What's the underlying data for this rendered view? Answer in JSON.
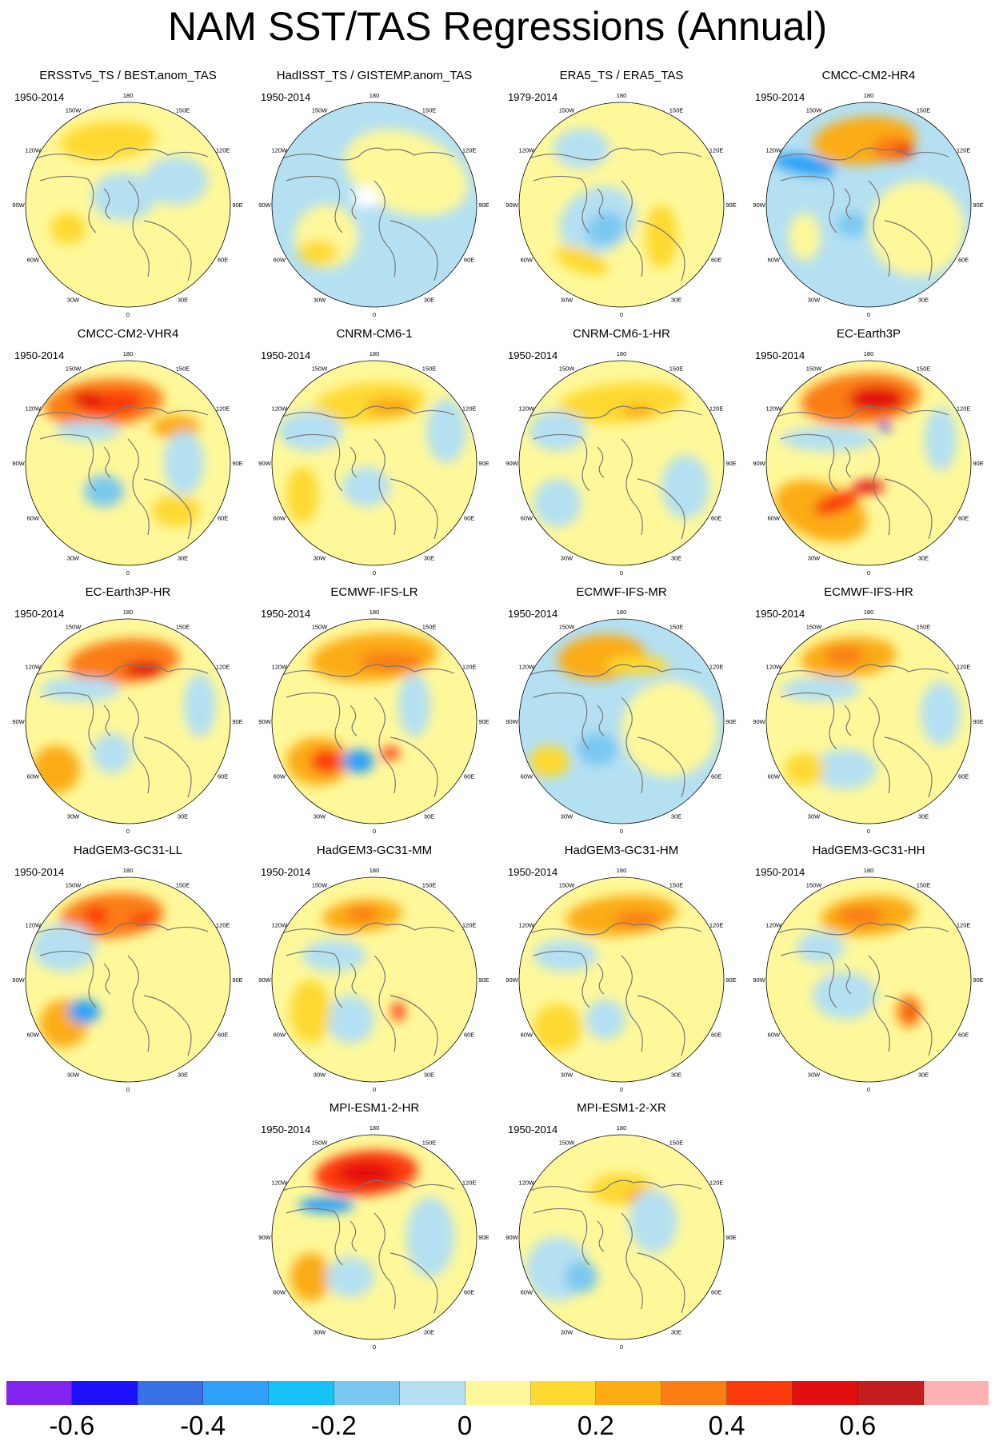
{
  "title": "NAM SST/TAS Regressions (Annual)",
  "panels": [
    {
      "title": "ERSSTv5_TS / BEST.anom_TAS",
      "period": "1950-2014"
    },
    {
      "title": "HadISST_TS / GISTEMP.anom_TAS",
      "period": "1950-2014"
    },
    {
      "title": "ERA5_TS / ERA5_TAS",
      "period": "1979-2014"
    },
    {
      "title": "CMCC-CM2-HR4",
      "period": "1950-2014"
    },
    {
      "title": "CMCC-CM2-VHR4",
      "period": "1950-2014"
    },
    {
      "title": "CNRM-CM6-1",
      "period": "1950-2014"
    },
    {
      "title": "CNRM-CM6-1-HR",
      "period": "1950-2014"
    },
    {
      "title": "EC-Earth3P",
      "period": "1950-2014"
    },
    {
      "title": "EC-Earth3P-HR",
      "period": "1950-2014"
    },
    {
      "title": "ECMWF-IFS-LR",
      "period": "1950-2014"
    },
    {
      "title": "ECMWF-IFS-MR",
      "period": "1950-2014"
    },
    {
      "title": "ECMWF-IFS-HR",
      "period": "1950-2014"
    },
    {
      "title": "HadGEM3-GC31-LL",
      "period": "1950-2014"
    },
    {
      "title": "HadGEM3-GC31-MM",
      "period": "1950-2014"
    },
    {
      "title": "HadGEM3-GC31-HM",
      "period": "1950-2014"
    },
    {
      "title": "HadGEM3-GC31-HH",
      "period": "1950-2014"
    },
    {
      "title": "MPI-ESM1-2-HR",
      "period": "1950-2014"
    },
    {
      "title": "MPI-ESM1-2-XR",
      "period": "1950-2014"
    }
  ],
  "longitude_labels": [
    "180",
    "150E",
    "120E",
    "90E",
    "60E",
    "30E",
    "0",
    "30W",
    "60W",
    "90W",
    "120W",
    "150W"
  ],
  "colorbar": {
    "colors": [
      "#8124f0",
      "#1e12fa",
      "#3a70e6",
      "#2ea0f8",
      "#17c2f8",
      "#7ac8f0",
      "#b4e0f2",
      "#fef89a",
      "#fdd931",
      "#fbac13",
      "#fb7d13",
      "#fb3a0e",
      "#e20f0f",
      "#c51d1d",
      "#feb1b2"
    ],
    "tick_labels": [
      "-0.6",
      "-0.4",
      "-0.2",
      "0",
      "0.2",
      "0.4",
      "0.6"
    ],
    "tick_values": [
      -0.6,
      -0.4,
      -0.2,
      0,
      0.2,
      0.4,
      0.6
    ]
  },
  "map_fields": [
    {
      "bg": "#fef89a",
      "blobs": [
        [
          "#fdd931",
          -25,
          -80,
          60,
          24,
          -5
        ],
        [
          "#b4e0f2",
          -5,
          -10,
          40,
          30,
          0
        ],
        [
          "#fdd931",
          -75,
          30,
          22,
          20,
          0
        ],
        [
          "#b4e0f2",
          60,
          -30,
          40,
          30,
          0
        ]
      ]
    },
    {
      "bg": "#b4e0f2",
      "blobs": [
        [
          "#fef89a",
          40,
          -40,
          80,
          50,
          20
        ],
        [
          "#fef89a",
          -60,
          40,
          40,
          40,
          0
        ],
        [
          "#fdd931",
          -70,
          60,
          25,
          15,
          0
        ],
        [
          "#ffffff",
          -10,
          -10,
          18,
          14,
          0
        ]
      ]
    },
    {
      "bg": "#fef89a",
      "blobs": [
        [
          "#b4e0f2",
          -30,
          20,
          50,
          40,
          -30
        ],
        [
          "#7ac8f0",
          -20,
          30,
          25,
          20,
          -30
        ],
        [
          "#fdd931",
          -50,
          70,
          35,
          15,
          20
        ],
        [
          "#fdd931",
          50,
          40,
          20,
          40,
          0
        ],
        [
          "#b4e0f2",
          -50,
          -70,
          35,
          25,
          0
        ]
      ]
    },
    {
      "bg": "#b4e0f2",
      "blobs": [
        [
          "#fbac13",
          -5,
          -80,
          65,
          30,
          -5
        ],
        [
          "#fb7d13",
          30,
          -70,
          25,
          16,
          0
        ],
        [
          "#e20f0f",
          45,
          -68,
          12,
          7,
          0
        ],
        [
          "#2ea0f8",
          -80,
          -50,
          40,
          12,
          10
        ],
        [
          "#fef89a",
          60,
          30,
          60,
          60,
          0
        ],
        [
          "#fef89a",
          -80,
          40,
          20,
          30,
          0
        ],
        [
          "#7ac8f0",
          -20,
          25,
          20,
          15,
          0
        ]
      ]
    },
    {
      "bg": "#fef89a",
      "blobs": [
        [
          "#fb7d13",
          -30,
          -75,
          75,
          30,
          -5
        ],
        [
          "#fb3a0e",
          -20,
          -75,
          40,
          15,
          -5
        ],
        [
          "#e20f0f",
          -50,
          -80,
          20,
          10,
          0
        ],
        [
          "#fbac13",
          60,
          -45,
          30,
          15,
          0
        ],
        [
          "#b4e0f2",
          -50,
          -40,
          40,
          12,
          0
        ],
        [
          "#7ac8f0",
          -30,
          35,
          25,
          20,
          0
        ],
        [
          "#fdd931",
          60,
          60,
          30,
          20,
          0
        ],
        [
          "#b4e0f2",
          70,
          0,
          25,
          40,
          0
        ]
      ]
    },
    {
      "bg": "#fef89a",
      "blobs": [
        [
          "#fdd931",
          -5,
          -75,
          70,
          25,
          -5
        ],
        [
          "#fbac13",
          20,
          -70,
          30,
          12,
          0
        ],
        [
          "#b4e0f2",
          -10,
          30,
          30,
          25,
          0
        ],
        [
          "#b4e0f2",
          -80,
          -40,
          40,
          25,
          0
        ],
        [
          "#fdd931",
          -90,
          40,
          20,
          35,
          0
        ],
        [
          "#b4e0f2",
          90,
          -40,
          25,
          40,
          0
        ]
      ]
    },
    {
      "bg": "#fef89a",
      "blobs": [
        [
          "#fdd931",
          0,
          -75,
          80,
          25,
          -5
        ],
        [
          "#fbac13",
          20,
          -65,
          20,
          8,
          0
        ],
        [
          "#b4e0f2",
          -80,
          -40,
          35,
          25,
          0
        ],
        [
          "#b4e0f2",
          -80,
          50,
          30,
          30,
          0
        ],
        [
          "#b4e0f2",
          80,
          30,
          30,
          40,
          0
        ]
      ]
    },
    {
      "bg": "#fef89a",
      "blobs": [
        [
          "#fb7d13",
          -10,
          -80,
          75,
          32,
          -5
        ],
        [
          "#e20f0f",
          10,
          -80,
          35,
          16,
          0
        ],
        [
          "#fbac13",
          -60,
          60,
          60,
          35,
          20
        ],
        [
          "#fb3a0e",
          -40,
          50,
          30,
          12,
          -20
        ],
        [
          "#e20f0f",
          0,
          30,
          20,
          8,
          0
        ],
        [
          "#1e12fa",
          20,
          -45,
          8,
          5,
          0
        ],
        [
          "#b4e0f2",
          -50,
          -30,
          60,
          15,
          0
        ],
        [
          "#b4e0f2",
          90,
          -30,
          20,
          40,
          0
        ]
      ]
    },
    {
      "bg": "#fef89a",
      "blobs": [
        [
          "#fb7d13",
          -5,
          -75,
          70,
          28,
          -5
        ],
        [
          "#e20f0f",
          20,
          -65,
          25,
          10,
          0
        ],
        [
          "#b4e0f2",
          -60,
          -40,
          50,
          15,
          0
        ],
        [
          "#fbac13",
          -90,
          60,
          30,
          30,
          0
        ],
        [
          "#b4e0f2",
          -20,
          40,
          25,
          25,
          0
        ],
        [
          "#b4e0f2",
          90,
          -20,
          20,
          40,
          0
        ]
      ]
    },
    {
      "bg": "#fef89a",
      "blobs": [
        [
          "#fbac13",
          0,
          -80,
          80,
          30,
          -5
        ],
        [
          "#fb7d13",
          20,
          -75,
          40,
          12,
          0
        ],
        [
          "#fbac13",
          -70,
          50,
          40,
          30,
          0
        ],
        [
          "#fb3a0e",
          -60,
          50,
          20,
          15,
          0
        ],
        [
          "#2ea0f8",
          -20,
          50,
          20,
          15,
          0
        ],
        [
          "#fb3a0e",
          20,
          40,
          12,
          8,
          0
        ],
        [
          "#b4e0f2",
          50,
          -20,
          20,
          40,
          0
        ]
      ]
    },
    {
      "bg": "#b4e0f2",
      "blobs": [
        [
          "#fbac13",
          -25,
          -80,
          55,
          28,
          -5
        ],
        [
          "#fdd931",
          20,
          -70,
          40,
          12,
          0
        ],
        [
          "#fef89a",
          60,
          10,
          60,
          60,
          0
        ],
        [
          "#fdd931",
          -90,
          50,
          25,
          20,
          0
        ],
        [
          "#7ac8f0",
          -30,
          35,
          25,
          20,
          0
        ]
      ]
    },
    {
      "bg": "#fef89a",
      "blobs": [
        [
          "#fbac13",
          -25,
          -80,
          60,
          25,
          -5
        ],
        [
          "#fb7d13",
          -30,
          -82,
          25,
          12,
          0
        ],
        [
          "#b4e0f2",
          -60,
          -40,
          50,
          15,
          0
        ],
        [
          "#b4e0f2",
          -30,
          60,
          40,
          25,
          0
        ],
        [
          "#fdd931",
          -80,
          60,
          25,
          20,
          0
        ],
        [
          "#b4e0f2",
          90,
          -10,
          25,
          40,
          0
        ]
      ]
    },
    {
      "bg": "#fef89a",
      "blobs": [
        [
          "#fb7d13",
          -20,
          -80,
          65,
          28,
          -5
        ],
        [
          "#fb3a0e",
          -40,
          -80,
          15,
          12,
          0
        ],
        [
          "#fb3a0e",
          20,
          -75,
          20,
          8,
          0
        ],
        [
          "#b4e0f2",
          -80,
          -40,
          40,
          30,
          0
        ],
        [
          "#fbac13",
          -80,
          55,
          30,
          30,
          0
        ],
        [
          "#2ea0f8",
          -55,
          40,
          20,
          15,
          0
        ]
      ]
    },
    {
      "bg": "#fef89a",
      "blobs": [
        [
          "#fbac13",
          -15,
          -80,
          50,
          20,
          -5
        ],
        [
          "#fb7d13",
          -15,
          -82,
          20,
          10,
          0
        ],
        [
          "#b4e0f2",
          -50,
          -30,
          40,
          20,
          0
        ],
        [
          "#b4e0f2",
          -30,
          50,
          30,
          30,
          0
        ],
        [
          "#fdd931",
          -80,
          40,
          25,
          40,
          0
        ],
        [
          "#fb3a0e",
          30,
          40,
          8,
          12,
          0
        ]
      ]
    },
    {
      "bg": "#fef89a",
      "blobs": [
        [
          "#fbac13",
          0,
          -80,
          70,
          25,
          -5
        ],
        [
          "#fb7d13",
          20,
          -75,
          30,
          10,
          0
        ],
        [
          "#b4e0f2",
          -70,
          -30,
          40,
          20,
          0
        ],
        [
          "#fdd931",
          -80,
          60,
          30,
          30,
          0
        ],
        [
          "#b4e0f2",
          -20,
          50,
          25,
          25,
          0
        ]
      ]
    },
    {
      "bg": "#fef89a",
      "blobs": [
        [
          "#fbac13",
          0,
          -80,
          60,
          25,
          -5
        ],
        [
          "#fb7d13",
          -10,
          -80,
          30,
          12,
          0
        ],
        [
          "#fb7d13",
          50,
          40,
          15,
          20,
          0
        ],
        [
          "#fb3a0e",
          55,
          40,
          6,
          10,
          0
        ],
        [
          "#b4e0f2",
          -30,
          20,
          40,
          30,
          0
        ],
        [
          "#b4e0f2",
          -60,
          -40,
          30,
          20,
          0
        ]
      ]
    },
    {
      "bg": "#fef89a",
      "blobs": [
        [
          "#fb3a0e",
          -10,
          -80,
          65,
          28,
          -5
        ],
        [
          "#e20f0f",
          -10,
          -80,
          35,
          14,
          0
        ],
        [
          "#2ea0f8",
          -60,
          -40,
          35,
          10,
          0
        ],
        [
          "#fbac13",
          -80,
          50,
          25,
          30,
          0
        ],
        [
          "#b4e0f2",
          -30,
          50,
          30,
          25,
          0
        ],
        [
          "#b4e0f2",
          70,
          0,
          30,
          50,
          0
        ]
      ]
    },
    {
      "bg": "#fef89a",
      "blobs": [
        [
          "#fdd931",
          0,
          -60,
          40,
          20,
          0
        ],
        [
          "#fbac13",
          20,
          -50,
          15,
          10,
          0
        ],
        [
          "#b4e0f2",
          -80,
          40,
          40,
          40,
          0
        ],
        [
          "#b4e0f2",
          40,
          -20,
          30,
          40,
          0
        ],
        [
          "#7ac8f0",
          -50,
          50,
          20,
          20,
          0
        ]
      ]
    }
  ]
}
